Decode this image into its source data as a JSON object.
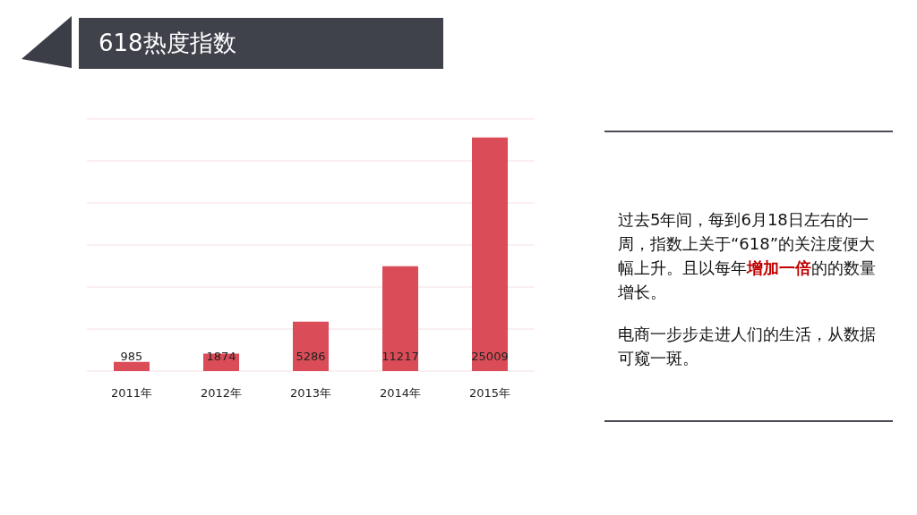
{
  "chart_data": {
    "type": "bar",
    "title": "618热度指数",
    "categories": [
      "2011年",
      "2012年",
      "2013年",
      "2014年",
      "2015年"
    ],
    "values": [
      985,
      1874,
      5286,
      11217,
      25009
    ],
    "color": "#d94c58",
    "tick_labels": "x",
    "legend": false,
    "grid": "y",
    "data_labels": true,
    "annotations": [
      "过去5年间，每到6月18日左右的一周，指数上关于“618”的关注度便大幅上升。且以每年",
      "增加一倍",
      "的的数量增长。",
      "电商一步步走进人们的生活，从数据可窥一斑。"
    ]
  }
}
